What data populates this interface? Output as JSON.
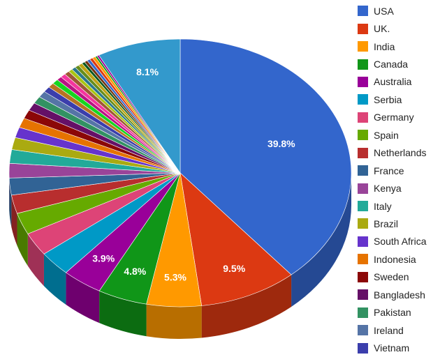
{
  "chart_data": {
    "type": "pie",
    "title": "",
    "legend_position": "right",
    "style": "3d",
    "slices": [
      {
        "label": "USA",
        "value": 39.8,
        "color": "#3366cc",
        "value_label": "39.8%"
      },
      {
        "label": "UK.",
        "value": 9.5,
        "color": "#dc3912",
        "value_label": "9.5%"
      },
      {
        "label": "India",
        "value": 5.3,
        "color": "#ff9900",
        "value_label": "5.3%"
      },
      {
        "label": "Canada",
        "value": 4.8,
        "color": "#109618",
        "value_label": "4.8%"
      },
      {
        "label": "Australia",
        "value": 3.9,
        "color": "#990099",
        "value_label": "3.9%"
      },
      {
        "label": "Serbia",
        "value": 3.1,
        "color": "#0099c6",
        "value_label": ""
      },
      {
        "label": "Germany",
        "value": 2.9,
        "color": "#dd4477",
        "value_label": ""
      },
      {
        "label": "Spain",
        "value": 2.7,
        "color": "#66aa00",
        "value_label": ""
      },
      {
        "label": "Netherlands",
        "value": 2.3,
        "color": "#b82e2e",
        "value_label": ""
      },
      {
        "label": "France",
        "value": 2.1,
        "color": "#316395",
        "value_label": ""
      },
      {
        "label": "Kenya",
        "value": 1.8,
        "color": "#994499",
        "value_label": ""
      },
      {
        "label": "Italy",
        "value": 1.7,
        "color": "#22aa99",
        "value_label": ""
      },
      {
        "label": "Brazil",
        "value": 1.5,
        "color": "#aaaa11",
        "value_label": ""
      },
      {
        "label": "South Africa",
        "value": 1.3,
        "color": "#6633cc",
        "value_label": ""
      },
      {
        "label": "Indonesia",
        "value": 1.2,
        "color": "#e67300",
        "value_label": ""
      },
      {
        "label": "Sweden",
        "value": 1.1,
        "color": "#8b0707",
        "value_label": ""
      },
      {
        "label": "Bangladesh",
        "value": 1.0,
        "color": "#651067",
        "value_label": ""
      },
      {
        "label": "Pakistan",
        "value": 0.9,
        "color": "#329262",
        "value_label": ""
      },
      {
        "label": "Ireland",
        "value": 0.8,
        "color": "#5574a6",
        "value_label": ""
      },
      {
        "label": "Vietnam",
        "value": 0.7,
        "color": "#3b3eac",
        "value_label": ""
      },
      {
        "label": "",
        "value": 0.6,
        "color": "#b77322",
        "value_label": ""
      },
      {
        "label": "",
        "value": 0.6,
        "color": "#16d620",
        "value_label": ""
      },
      {
        "label": "",
        "value": 0.5,
        "color": "#b91383",
        "value_label": ""
      },
      {
        "label": "",
        "value": 0.5,
        "color": "#f4359e",
        "value_label": ""
      },
      {
        "label": "",
        "value": 0.5,
        "color": "#9c5935",
        "value_label": ""
      },
      {
        "label": "",
        "value": 0.4,
        "color": "#a9c413",
        "value_label": ""
      },
      {
        "label": "",
        "value": 0.4,
        "color": "#2a778d",
        "value_label": ""
      },
      {
        "label": "",
        "value": 0.4,
        "color": "#668d1c",
        "value_label": ""
      },
      {
        "label": "",
        "value": 0.4,
        "color": "#bea413",
        "value_label": ""
      },
      {
        "label": "",
        "value": 0.3,
        "color": "#0c5922",
        "value_label": ""
      },
      {
        "label": "",
        "value": 0.3,
        "color": "#743411",
        "value_label": ""
      },
      {
        "label": "",
        "value": 0.3,
        "color": "#3366cc",
        "value_label": ""
      },
      {
        "label": "",
        "value": 0.3,
        "color": "#dc3912",
        "value_label": ""
      },
      {
        "label": "",
        "value": 0.3,
        "color": "#ff9900",
        "value_label": ""
      },
      {
        "label": "",
        "value": 0.2,
        "color": "#109618",
        "value_label": ""
      },
      {
        "label": "",
        "value": 0.2,
        "color": "#990099",
        "value_label": ""
      },
      {
        "label": "",
        "value": 8.1,
        "color": "#3399cc",
        "value_label": "8.1%"
      }
    ]
  }
}
